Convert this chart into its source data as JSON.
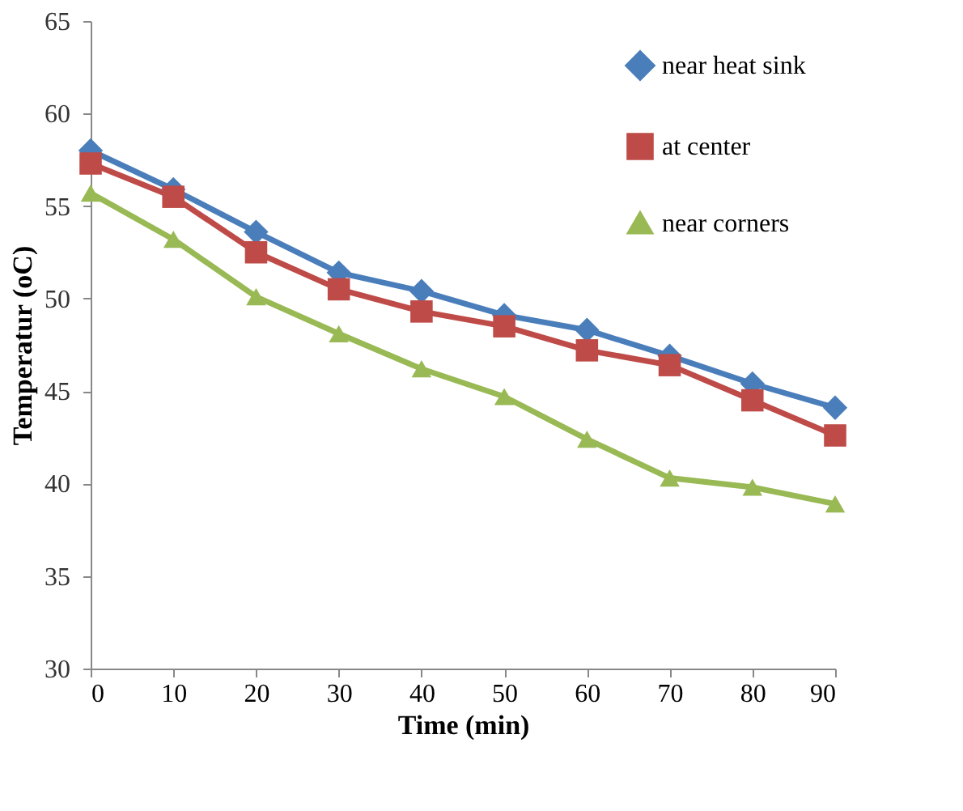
{
  "chart_data": {
    "type": "line",
    "xlabel": "Time (min)",
    "ylabel": "Temperatur (oC)",
    "x": [
      0,
      10,
      20,
      30,
      40,
      50,
      60,
      70,
      80,
      90
    ],
    "xlim": [
      0,
      90
    ],
    "xticks": [
      0,
      10,
      20,
      30,
      40,
      50,
      60,
      70,
      80,
      90
    ],
    "ylim": [
      30,
      65
    ],
    "yticks": [
      30,
      35,
      40,
      45,
      50,
      55,
      60,
      65
    ],
    "grid": false,
    "legend": "top right",
    "line_style": "solid",
    "series": [
      {
        "name": "near heat sink",
        "color": "#4a7ebb",
        "marker": "diamond",
        "values": [
          58.0,
          55.9,
          53.6,
          51.4,
          50.4,
          49.1,
          48.3,
          46.9,
          45.4,
          44.1
        ]
      },
      {
        "name": "at center",
        "color": "#be4b48",
        "marker": "square",
        "values": [
          57.3,
          55.5,
          52.5,
          50.5,
          49.3,
          48.5,
          47.2,
          46.4,
          44.5,
          42.6
        ]
      },
      {
        "name": "near corners",
        "color": "#98b954",
        "marker": "triangle",
        "values": [
          55.7,
          53.2,
          50.1,
          48.1,
          46.2,
          44.7,
          42.4,
          40.3,
          39.8,
          38.9
        ]
      }
    ]
  }
}
